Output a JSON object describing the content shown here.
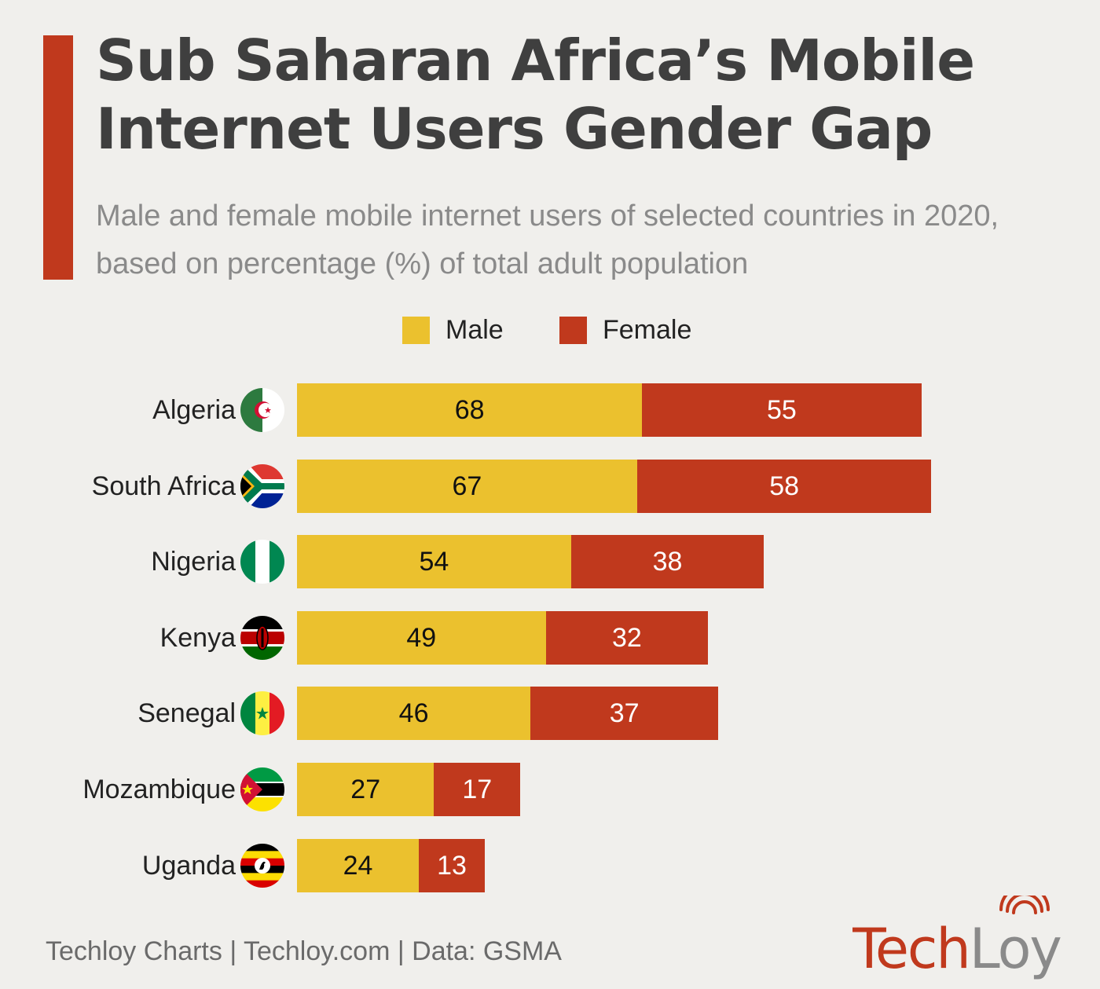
{
  "header": {
    "title": "Sub Saharan Africa’s Mobile Internet Users Gender Gap",
    "subtitle": "Male and female mobile internet users of selected countries in 2020, based on percentage (%) of total adult population"
  },
  "colors": {
    "male": "#ebc12e",
    "female": "#c0391d",
    "accent": "#c0391d"
  },
  "legend": [
    {
      "label": "Male",
      "color": "#ebc12e"
    },
    {
      "label": "Female",
      "color": "#c0391d"
    }
  ],
  "chart_data": {
    "type": "bar",
    "orientation": "horizontal",
    "stacked": true,
    "categories": [
      "Algeria",
      "South Africa",
      "Nigeria",
      "Kenya",
      "Senegal",
      "Mozambique",
      "Uganda"
    ],
    "flags": [
      "algeria-flag-icon",
      "south-africa-flag-icon",
      "nigeria-flag-icon",
      "kenya-flag-icon",
      "senegal-flag-icon",
      "mozambique-flag-icon",
      "uganda-flag-icon"
    ],
    "series": [
      {
        "name": "Male",
        "values": [
          68,
          67,
          54,
          49,
          46,
          27,
          24
        ]
      },
      {
        "name": "Female",
        "values": [
          55,
          58,
          38,
          32,
          37,
          17,
          13
        ]
      }
    ],
    "grid": false,
    "legend_position": "top"
  },
  "footer": {
    "credit": "Techloy Charts | Techloy.com | Data: GSMA",
    "logo_text_a": "Tech",
    "logo_text_b": "Loy"
  }
}
